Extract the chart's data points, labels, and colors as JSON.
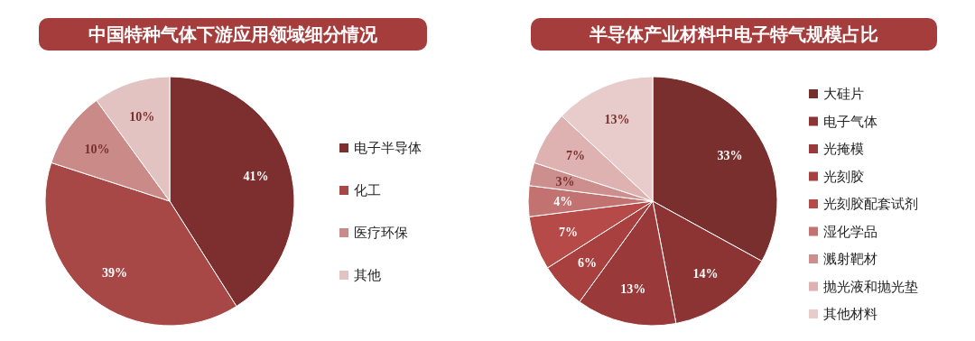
{
  "chart_data": [
    {
      "type": "pie",
      "title": "中国特种气体下游应用领域细分情况",
      "categories": [
        "电子半导体",
        "化工",
        "医疗环保",
        "其他"
      ],
      "values": [
        41,
        39,
        10,
        10
      ],
      "colors": [
        "#7d2f2f",
        "#a84846",
        "#c98a88",
        "#e3c3c2"
      ],
      "value_labels": [
        "41%",
        "39%",
        "10%",
        "10%"
      ],
      "legend": "right"
    },
    {
      "type": "pie",
      "title": "半导体产业材料中电子特气规模占比",
      "categories": [
        "大硅片",
        "电子气体",
        "光掩模",
        "光刻胶",
        "光刻胶配套试剂",
        "湿化学品",
        "溅射靶材",
        "抛光液和抛光垫",
        "其他材料"
      ],
      "values": [
        33,
        14,
        13,
        6,
        7,
        4,
        3,
        7,
        13
      ],
      "colors": [
        "#7a2f2f",
        "#8c3434",
        "#9a3939",
        "#a8403f",
        "#b54a48",
        "#c27270",
        "#cd8f8d",
        "#ddb2b0",
        "#e8cccb"
      ],
      "value_labels": [
        "33%",
        "14%",
        "13%",
        "6%",
        "7%",
        "4%",
        "3%",
        "7%",
        "13%"
      ],
      "legend": "right"
    }
  ]
}
